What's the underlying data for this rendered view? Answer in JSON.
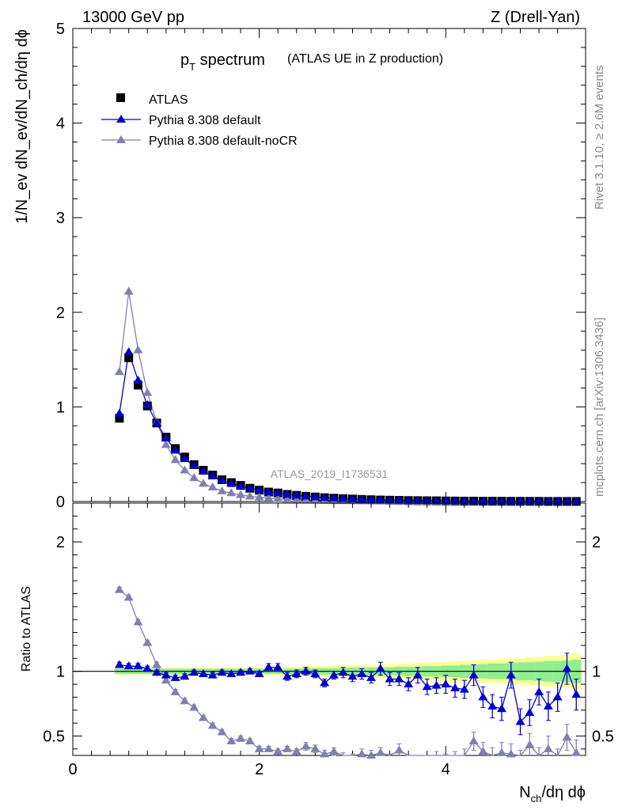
{
  "header": {
    "energy": "13000 GeV pp",
    "process": "Z (Drell-Yan)"
  },
  "side_labels": {
    "rivet": "Rivet 3.1.10, ≥ 2.6M events",
    "mcplots": "mcplots.cern.ch [arXiv:1306.3436]"
  },
  "chart_data": [
    {
      "type": "scatter",
      "title_main": "p",
      "title_sub": "T",
      "title_rest": " spectrum",
      "subtitle": "(ATLAS UE in Z production)",
      "watermark": "ATLAS_2019_I1736531",
      "ylabel": "1/N_ev dN_ev/dN_ch/dη dϕ",
      "ylim": [
        0,
        5
      ],
      "yticks": [
        "0",
        "1",
        "2",
        "3",
        "4",
        "5"
      ],
      "xlim": [
        0,
        5.5
      ],
      "legend_placement": "top-left",
      "x": [
        0.5,
        0.6,
        0.7,
        0.8,
        0.9,
        1.0,
        1.1,
        1.2,
        1.3,
        1.4,
        1.5,
        1.6,
        1.7,
        1.8,
        1.9,
        2.0,
        2.1,
        2.2,
        2.3,
        2.4,
        2.5,
        2.6,
        2.7,
        2.8,
        2.9,
        3.0,
        3.1,
        3.2,
        3.3,
        3.4,
        3.5,
        3.6,
        3.7,
        3.8,
        3.9,
        4.0,
        4.1,
        4.2,
        4.3,
        4.4,
        4.5,
        4.6,
        4.7,
        4.8,
        4.9,
        5.0,
        5.1,
        5.2,
        5.3,
        5.4
      ],
      "series": [
        {
          "name": "ATLAS",
          "color": "#000000",
          "marker": "square",
          "values": [
            0.88,
            1.52,
            1.23,
            1.01,
            0.83,
            0.68,
            0.56,
            0.47,
            0.39,
            0.33,
            0.28,
            0.23,
            0.2,
            0.17,
            0.14,
            0.12,
            0.1,
            0.09,
            0.075,
            0.065,
            0.055,
            0.048,
            0.04,
            0.035,
            0.03,
            0.026,
            0.022,
            0.019,
            0.016,
            0.014,
            0.012,
            0.01,
            0.009,
            0.008,
            0.007,
            0.006,
            0.005,
            0.004,
            0.004,
            0.003,
            0.003,
            0.003,
            0.002,
            0.002,
            0.002,
            0.002,
            0.001,
            0.001,
            0.001,
            0.001
          ]
        },
        {
          "name": "Pythia 8.308 default",
          "color": "#0000cc",
          "marker": "triangle",
          "values": [
            0.93,
            1.58,
            1.28,
            1.02,
            0.83,
            0.67,
            0.54,
            0.45,
            0.38,
            0.32,
            0.27,
            0.22,
            0.19,
            0.16,
            0.14,
            0.12,
            0.1,
            0.09,
            0.075,
            0.065,
            0.055,
            0.048,
            0.04,
            0.035,
            0.03,
            0.026,
            0.022,
            0.019,
            0.016,
            0.014,
            0.012,
            0.01,
            0.009,
            0.008,
            0.007,
            0.006,
            0.005,
            0.004,
            0.004,
            0.003,
            0.003,
            0.003,
            0.002,
            0.002,
            0.002,
            0.002,
            0.001,
            0.001,
            0.001,
            0.001
          ]
        },
        {
          "name": "Pythia 8.308 default-noCR",
          "color": "#8080b0",
          "marker": "triangle",
          "values": [
            1.37,
            2.22,
            1.6,
            1.15,
            0.84,
            0.6,
            0.44,
            0.33,
            0.25,
            0.19,
            0.15,
            0.11,
            0.09,
            0.07,
            0.055,
            0.045,
            0.035,
            0.028,
            0.022,
            0.018,
            0.014,
            0.011,
            0.009,
            0.007,
            0.006,
            0.005,
            0.004,
            0.003,
            0.003,
            0.002,
            0.002,
            0.002,
            0.001,
            0.001,
            0.001,
            0.001,
            0.001,
            0.001,
            0.001,
            0.001,
            0.001,
            0.001,
            0.001,
            0.001,
            0.001,
            0.001,
            0.001,
            0.001,
            0.001,
            0.001
          ]
        }
      ]
    },
    {
      "type": "scatter",
      "ylabel": "Ratio to ATLAS",
      "xlabel": "N_ch/dη dϕ",
      "ylim": [
        0.35,
        2.3
      ],
      "yticks_left": [
        "0.5",
        "1",
        "2"
      ],
      "yticks_right": [
        "0.5",
        "1",
        "2"
      ],
      "xlim": [
        0,
        5.5
      ],
      "xticks": [
        "0",
        "2",
        "4"
      ],
      "x": [
        0.5,
        0.6,
        0.7,
        0.8,
        0.9,
        1.0,
        1.1,
        1.2,
        1.3,
        1.4,
        1.5,
        1.6,
        1.7,
        1.8,
        1.9,
        2.0,
        2.1,
        2.2,
        2.3,
        2.4,
        2.5,
        2.6,
        2.7,
        2.8,
        2.9,
        3.0,
        3.1,
        3.2,
        3.3,
        3.4,
        3.5,
        3.6,
        3.7,
        3.8,
        3.9,
        4.0,
        4.1,
        4.2,
        4.3,
        4.4,
        4.5,
        4.6,
        4.7,
        4.8,
        4.9,
        5.0,
        5.1,
        5.2,
        5.3,
        5.4
      ],
      "band_stat": [
        0.02,
        0.02,
        0.02,
        0.02,
        0.02,
        0.02,
        0.02,
        0.02,
        0.02,
        0.02,
        0.02,
        0.02,
        0.02,
        0.02,
        0.02,
        0.02,
        0.02,
        0.02,
        0.02,
        0.02,
        0.025,
        0.025,
        0.025,
        0.025,
        0.025,
        0.03,
        0.03,
        0.03,
        0.03,
        0.03,
        0.035,
        0.035,
        0.035,
        0.04,
        0.04,
        0.045,
        0.045,
        0.05,
        0.05,
        0.055,
        0.06,
        0.06,
        0.065,
        0.07,
        0.07,
        0.075,
        0.08,
        0.08,
        0.085,
        0.09
      ],
      "band_total": [
        0.03,
        0.03,
        0.03,
        0.03,
        0.03,
        0.03,
        0.03,
        0.03,
        0.03,
        0.03,
        0.03,
        0.03,
        0.03,
        0.03,
        0.03,
        0.03,
        0.035,
        0.035,
        0.035,
        0.035,
        0.04,
        0.04,
        0.04,
        0.045,
        0.045,
        0.05,
        0.05,
        0.05,
        0.055,
        0.055,
        0.06,
        0.06,
        0.065,
        0.07,
        0.07,
        0.075,
        0.08,
        0.08,
        0.085,
        0.09,
        0.09,
        0.095,
        0.1,
        0.1,
        0.11,
        0.11,
        0.12,
        0.12,
        0.13,
        0.14
      ],
      "series": [
        {
          "name": "Pythia 8.308 default",
          "color": "#0000cc",
          "values": [
            1.05,
            1.04,
            1.04,
            1.02,
            0.99,
            0.97,
            0.95,
            0.96,
            0.99,
            0.98,
            0.97,
            0.99,
            0.98,
            0.99,
            1.0,
            0.98,
            1.03,
            1.03,
            0.96,
            0.98,
            1.0,
            0.98,
            0.91,
            0.97,
            0.99,
            0.96,
            0.98,
            0.95,
            1.02,
            0.94,
            0.94,
            0.9,
            0.97,
            0.88,
            0.89,
            0.9,
            0.87,
            0.86,
            0.97,
            0.8,
            0.73,
            0.71,
            0.97,
            0.61,
            0.68,
            0.84,
            0.73,
            0.8,
            1.02,
            0.82
          ],
          "errors": [
            0.02,
            0.02,
            0.02,
            0.02,
            0.02,
            0.02,
            0.02,
            0.02,
            0.02,
            0.02,
            0.02,
            0.02,
            0.02,
            0.02,
            0.02,
            0.02,
            0.03,
            0.03,
            0.03,
            0.03,
            0.03,
            0.03,
            0.03,
            0.03,
            0.04,
            0.04,
            0.04,
            0.04,
            0.05,
            0.05,
            0.05,
            0.05,
            0.06,
            0.06,
            0.06,
            0.07,
            0.07,
            0.07,
            0.08,
            0.08,
            0.09,
            0.09,
            0.1,
            0.1,
            0.1,
            0.1,
            0.11,
            0.11,
            0.12,
            0.12
          ]
        },
        {
          "name": "Pythia 8.308 default-noCR",
          "color": "#8080b0",
          "values": [
            1.63,
            1.57,
            1.38,
            1.22,
            1.05,
            0.93,
            0.84,
            0.77,
            0.72,
            0.64,
            0.58,
            0.53,
            0.46,
            0.48,
            0.46,
            0.4,
            0.4,
            0.38,
            0.4,
            0.38,
            0.42,
            0.4,
            0.36,
            0.38,
            0.34,
            0.32,
            0.36,
            0.35,
            0.37,
            0.32,
            0.39,
            0.3,
            0.3,
            0.3,
            0.32,
            0.3,
            0.32,
            0.33,
            0.46,
            0.38,
            0.33,
            0.37,
            0.36,
            0.3,
            0.43,
            0.32,
            0.4,
            0.3,
            0.49,
            0.37
          ],
          "errors": [
            0.02,
            0.02,
            0.02,
            0.02,
            0.02,
            0.02,
            0.02,
            0.02,
            0.02,
            0.02,
            0.02,
            0.02,
            0.02,
            0.02,
            0.02,
            0.02,
            0.02,
            0.02,
            0.02,
            0.02,
            0.03,
            0.03,
            0.03,
            0.03,
            0.03,
            0.04,
            0.04,
            0.04,
            0.04,
            0.04,
            0.05,
            0.05,
            0.05,
            0.05,
            0.06,
            0.06,
            0.06,
            0.07,
            0.07,
            0.07,
            0.08,
            0.08,
            0.08,
            0.09,
            0.09,
            0.09,
            0.1,
            0.1,
            0.1,
            0.1
          ]
        }
      ]
    }
  ]
}
